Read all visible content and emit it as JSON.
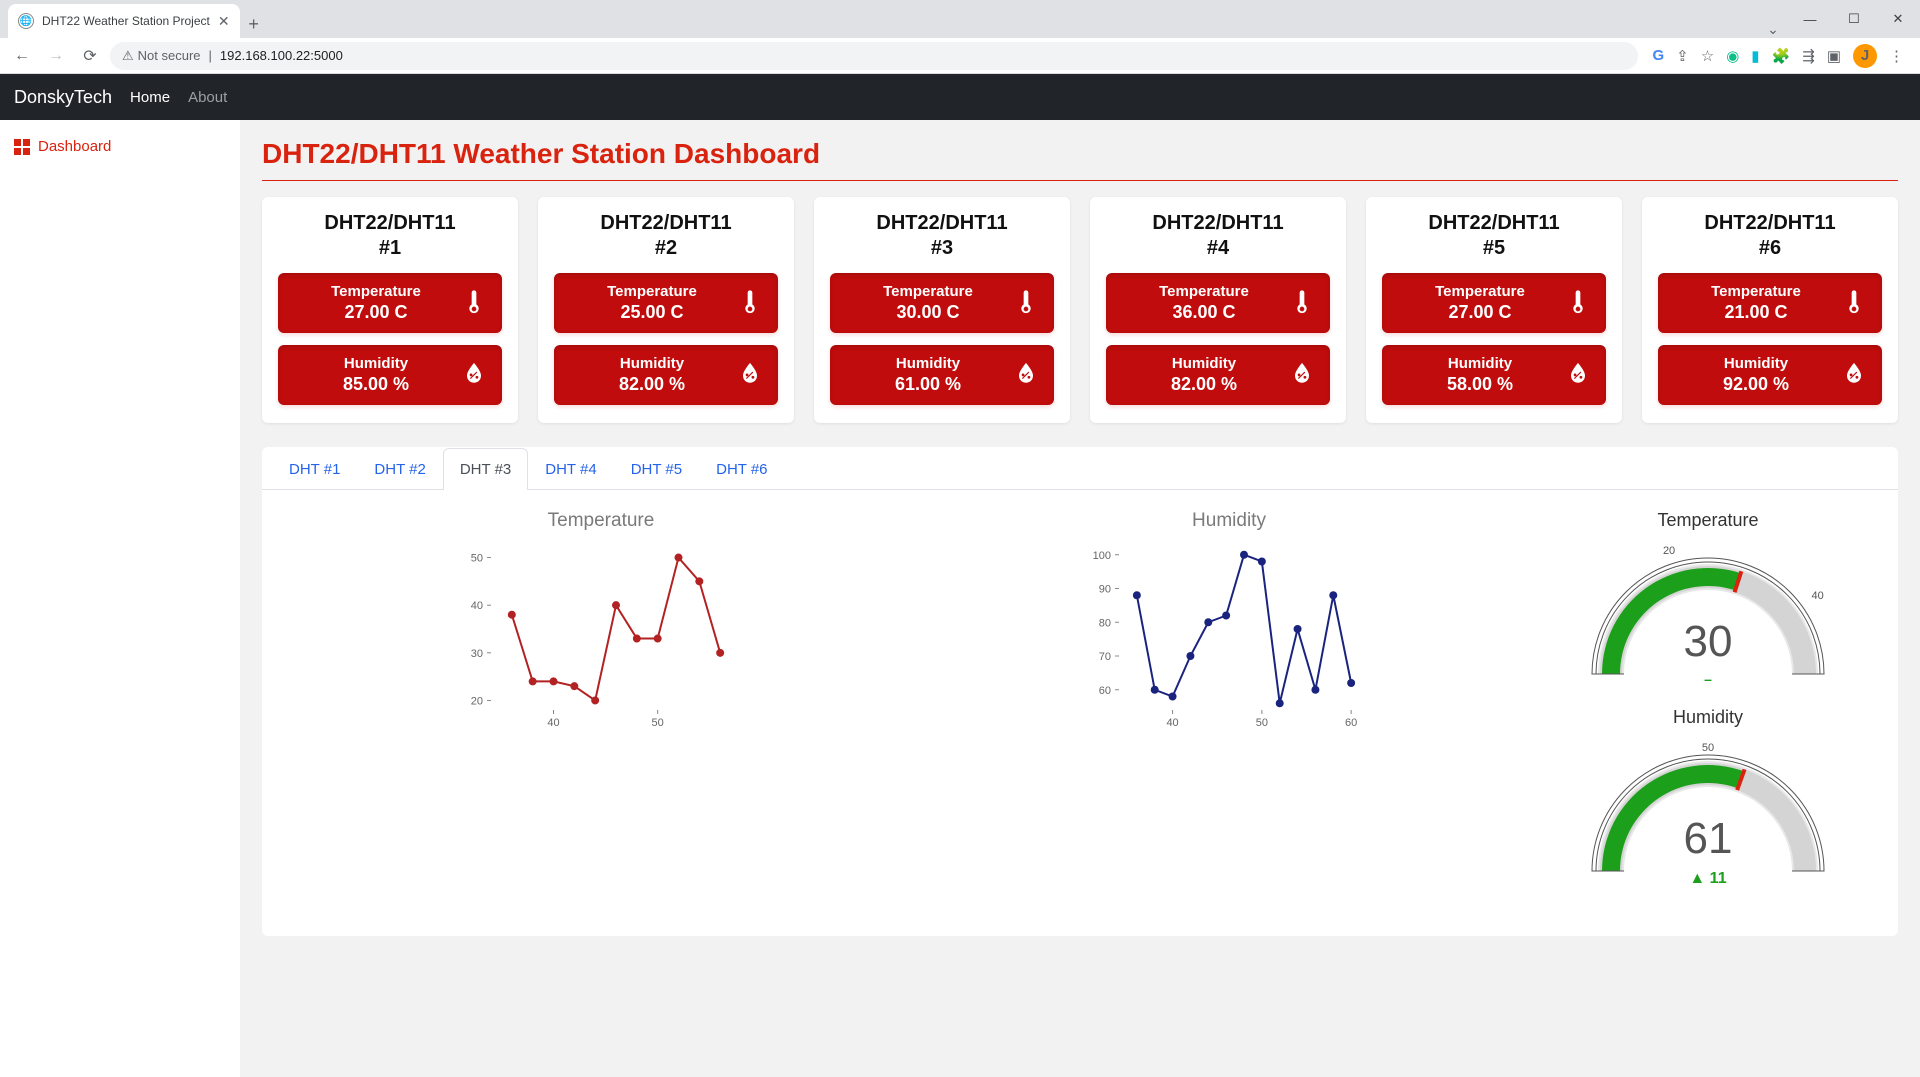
{
  "browser": {
    "tab_title": "DHT22 Weather Station Project",
    "security_label": "Not secure",
    "url": "192.168.100.22:5000",
    "avatar_initial": "J"
  },
  "navbar": {
    "brand": "DonskyTech",
    "links": [
      {
        "label": "Home",
        "muted": false
      },
      {
        "label": "About",
        "muted": true
      }
    ]
  },
  "sidebar": {
    "items": [
      {
        "label": "Dashboard"
      }
    ]
  },
  "page": {
    "title": "DHT22/DHT11 Weather Station Dashboard"
  },
  "sensors": [
    {
      "name_line1": "DHT22/DHT11",
      "name_line2": "#1",
      "temp_label": "Temperature",
      "temp_value": "27.00 C",
      "hum_label": "Humidity",
      "hum_value": "85.00 %"
    },
    {
      "name_line1": "DHT22/DHT11",
      "name_line2": "#2",
      "temp_label": "Temperature",
      "temp_value": "25.00 C",
      "hum_label": "Humidity",
      "hum_value": "82.00 %"
    },
    {
      "name_line1": "DHT22/DHT11",
      "name_line2": "#3",
      "temp_label": "Temperature",
      "temp_value": "30.00 C",
      "hum_label": "Humidity",
      "hum_value": "61.00 %"
    },
    {
      "name_line1": "DHT22/DHT11",
      "name_line2": "#4",
      "temp_label": "Temperature",
      "temp_value": "36.00 C",
      "hum_label": "Humidity",
      "hum_value": "82.00 %"
    },
    {
      "name_line1": "DHT22/DHT11",
      "name_line2": "#5",
      "temp_label": "Temperature",
      "temp_value": "27.00 C",
      "hum_label": "Humidity",
      "hum_value": "58.00 %"
    },
    {
      "name_line1": "DHT22/DHT11",
      "name_line2": "#6",
      "temp_label": "Temperature",
      "temp_value": "21.00 C",
      "hum_label": "Humidity",
      "hum_value": "92.00 %"
    }
  ],
  "tabs": {
    "active_index": 2,
    "items": [
      {
        "label": "DHT #1"
      },
      {
        "label": "DHT #2"
      },
      {
        "label": "DHT #3"
      },
      {
        "label": "DHT #4"
      },
      {
        "label": "DHT #5"
      },
      {
        "label": "DHT #6"
      }
    ]
  },
  "temperature_chart": {
    "type": "line",
    "title": "Temperature",
    "title_fontsize": 19,
    "title_color": "#7a7a7a",
    "line_color": "#b22222",
    "marker_color": "#b22222",
    "marker_size": 4,
    "line_width": 2,
    "background_color": "#ffffff",
    "grid": false,
    "x": [
      36,
      38,
      40,
      42,
      44,
      46,
      48,
      50,
      52,
      54,
      56
    ],
    "y": [
      38,
      24,
      24,
      23,
      20,
      40,
      33,
      33,
      50,
      45,
      30
    ],
    "xlim": [
      34,
      58
    ],
    "ylim": [
      18,
      52
    ],
    "xticks": [
      40,
      50
    ],
    "yticks": [
      20,
      30,
      40,
      50
    ]
  },
  "humidity_chart": {
    "type": "line",
    "title": "Humidity",
    "title_fontsize": 19,
    "title_color": "#7a7a7a",
    "line_color": "#1a237e",
    "marker_color": "#1a237e",
    "marker_size": 4,
    "line_width": 2,
    "background_color": "#ffffff",
    "grid": false,
    "x": [
      36,
      38,
      40,
      42,
      44,
      46,
      48,
      50,
      52,
      54,
      56,
      58,
      60
    ],
    "y": [
      88,
      60,
      58,
      70,
      80,
      82,
      100,
      98,
      56,
      78,
      60,
      88,
      62
    ],
    "xlim": [
      34,
      62
    ],
    "ylim": [
      54,
      102
    ],
    "xticks": [
      40,
      50,
      60
    ],
    "yticks": [
      60,
      70,
      80,
      90,
      100
    ]
  },
  "gauges": {
    "temperature": {
      "title": "Temperature",
      "value": 30,
      "value_text": "30",
      "min": 0,
      "max": 50,
      "tick_low": "20",
      "tick_high": "40",
      "arc_color": "#1ca01c",
      "arc_bg": "#bfbfbf",
      "needle_color": "#d9230f",
      "delta_text": "–",
      "delta_dir": "none"
    },
    "humidity": {
      "title": "Humidity",
      "value": 61,
      "value_text": "61",
      "min": 0,
      "max": 100,
      "tick_mid": "50",
      "arc_color": "#1ca01c",
      "arc_bg": "#bfbfbf",
      "needle_color": "#d9230f",
      "delta_text": "11",
      "delta_dir": "up"
    }
  },
  "colors": {
    "brand_red": "#d9230f",
    "card_red": "#c00c0c",
    "tab_link": "#2563eb",
    "navbar_bg": "#212529"
  }
}
